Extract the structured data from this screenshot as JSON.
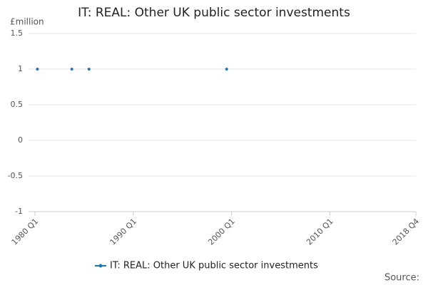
{
  "chart_data": {
    "type": "line",
    "title": "IT: REAL: Other UK public sector investments",
    "y_label": "£million",
    "source": "Source:",
    "x": [
      "1980 Q2",
      "1983 Q4",
      "1985 Q3",
      "1999 Q3"
    ],
    "series": [
      {
        "name": "IT: REAL: Other UK public sector investments",
        "color": "#1f78b4",
        "values": [
          1,
          1,
          1,
          1
        ]
      }
    ],
    "xlim": [
      "1980 Q1",
      "2018 Q4"
    ],
    "xticks": [
      "1980 Q1",
      "1990 Q1",
      "2000 Q1",
      "2010 Q1",
      "2018 Q4"
    ],
    "ylim": [
      -1,
      1.5
    ],
    "yticks": [
      1.5,
      1,
      0.5,
      0,
      -0.5,
      -1
    ],
    "grid": true,
    "legend": "bottom"
  }
}
